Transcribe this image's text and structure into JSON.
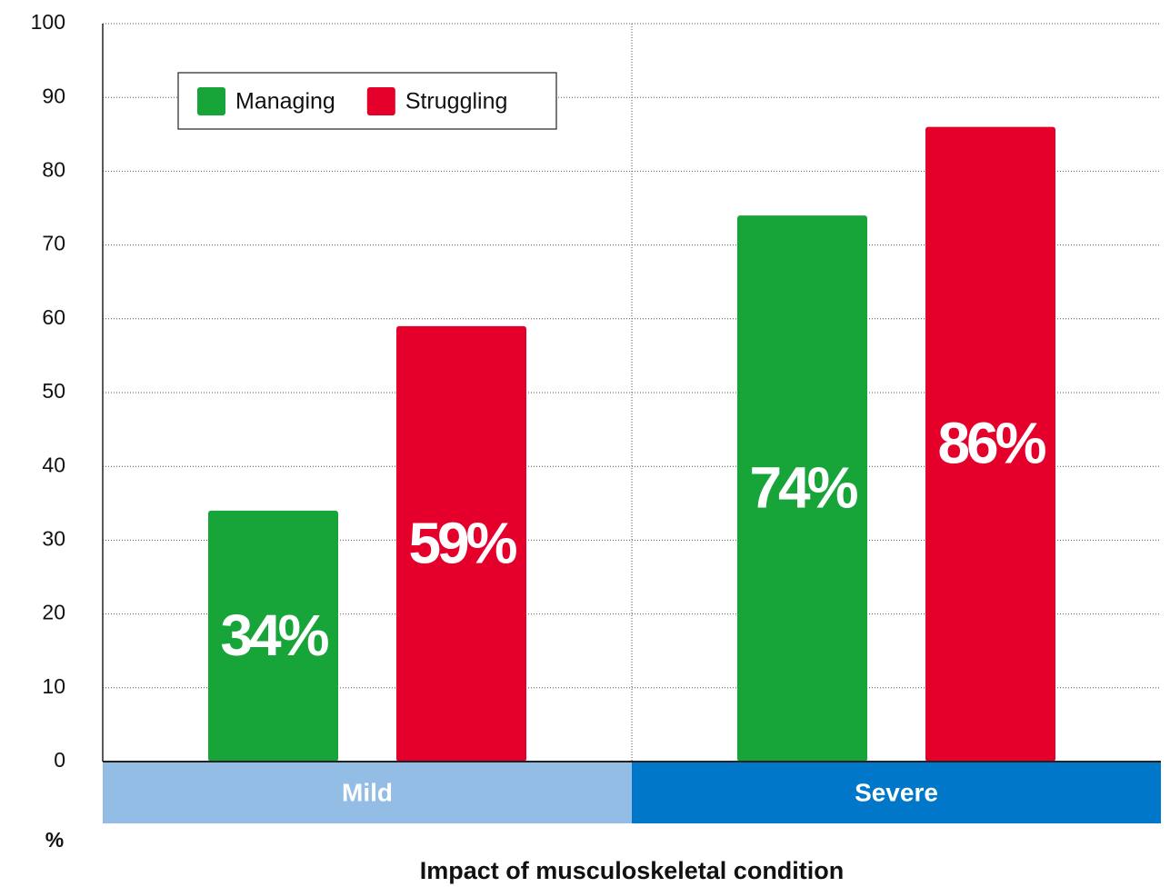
{
  "chart_data": {
    "type": "bar",
    "categories": [
      "Mild",
      "Severe"
    ],
    "category_colors": [
      "#93bde4",
      "#0077c8"
    ],
    "series": [
      {
        "name": "Managing",
        "color": "#17a53a",
        "values": [
          34,
          74
        ],
        "value_labels": [
          "34%",
          "74%"
        ]
      },
      {
        "name": "Struggling",
        "color": "#e4002b",
        "values": [
          59,
          86
        ],
        "value_labels": [
          "59%",
          "86%"
        ]
      }
    ],
    "xlabel": "Impact of musculoskeletal condition",
    "ylabel": "%",
    "ylim": [
      0,
      100
    ],
    "yticks": [
      0,
      10,
      20,
      30,
      40,
      50,
      60,
      70,
      80,
      90,
      100
    ],
    "grid": true,
    "legend": "upper left"
  }
}
